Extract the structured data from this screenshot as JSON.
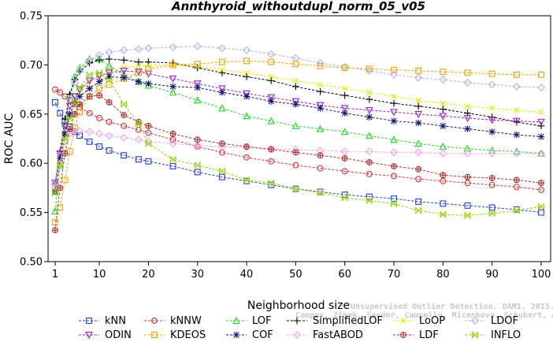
{
  "chart_data": {
    "type": "line",
    "title": "Annthyroid_withoutdupl_norm_05_v05",
    "xlabel": "Neighborhood size",
    "ylabel": "ROC AUC",
    "xlim": [
      1,
      100
    ],
    "ylim": [
      0.5,
      0.75
    ],
    "xticks": [
      1,
      10,
      20,
      30,
      40,
      50,
      60,
      70,
      80,
      90,
      100
    ],
    "yticks": [
      0.5,
      0.55,
      0.6,
      0.65,
      0.7,
      0.75
    ],
    "ytick_labels": [
      "0.50",
      "0.55",
      "0.60",
      "0.65",
      "0.70",
      "0.75"
    ],
    "grid": false,
    "legend_position": "bottom",
    "x": [
      1,
      2,
      3,
      4,
      5,
      6,
      8,
      10,
      12,
      15,
      18,
      20,
      25,
      30,
      35,
      40,
      45,
      50,
      55,
      60,
      65,
      70,
      75,
      80,
      85,
      90,
      95,
      100
    ],
    "series": [
      {
        "name": "kNN",
        "color": "#1f3fd6",
        "marker": "square",
        "values": [
          0.662,
          0.651,
          0.643,
          0.637,
          0.632,
          0.628,
          0.622,
          0.617,
          0.613,
          0.608,
          0.604,
          0.602,
          0.597,
          0.591,
          0.586,
          0.582,
          0.578,
          0.574,
          0.571,
          0.568,
          0.566,
          0.564,
          0.561,
          0.559,
          0.557,
          0.555,
          0.553,
          0.55
        ]
      },
      {
        "name": "kNNW",
        "color": "#e03030",
        "marker": "circle",
        "values": [
          0.675,
          0.672,
          0.668,
          0.664,
          0.66,
          0.657,
          0.651,
          0.646,
          0.642,
          0.638,
          0.634,
          0.631,
          0.624,
          0.617,
          0.611,
          0.606,
          0.602,
          0.598,
          0.595,
          0.592,
          0.589,
          0.587,
          0.584,
          0.582,
          0.58,
          0.578,
          0.576,
          0.573
        ]
      },
      {
        "name": "LOF",
        "color": "#22d622",
        "marker": "triangle-up",
        "values": [
          0.551,
          0.598,
          0.64,
          0.67,
          0.688,
          0.697,
          0.706,
          0.706,
          0.699,
          0.69,
          0.683,
          0.679,
          0.672,
          0.664,
          0.656,
          0.648,
          0.643,
          0.638,
          0.635,
          0.632,
          0.628,
          0.624,
          0.62,
          0.617,
          0.615,
          0.613,
          0.612,
          0.61
        ]
      },
      {
        "name": "SimplifiedLOF",
        "color": "#000000",
        "marker": "plus",
        "values": [
          0.579,
          0.612,
          0.645,
          0.67,
          0.685,
          0.693,
          0.702,
          0.705,
          0.706,
          0.705,
          0.703,
          0.703,
          0.702,
          0.697,
          0.692,
          0.688,
          0.684,
          0.678,
          0.673,
          0.669,
          0.665,
          0.661,
          0.658,
          0.655,
          0.651,
          0.647,
          0.642,
          0.638
        ]
      },
      {
        "name": "LoOP",
        "color": "#e6e600",
        "marker": "x",
        "values": [
          0.575,
          0.6,
          0.625,
          0.648,
          0.662,
          0.672,
          0.682,
          0.688,
          0.693,
          0.697,
          0.699,
          0.7,
          0.7,
          0.698,
          0.695,
          0.692,
          0.688,
          0.684,
          0.68,
          0.676,
          0.672,
          0.668,
          0.664,
          0.661,
          0.658,
          0.656,
          0.654,
          0.652
        ]
      },
      {
        "name": "LDOF",
        "color": "#b0b0e8",
        "marker": "diamond",
        "values": [
          0.578,
          0.61,
          0.64,
          0.665,
          0.682,
          0.694,
          0.705,
          0.71,
          0.713,
          0.715,
          0.716,
          0.717,
          0.718,
          0.719,
          0.717,
          0.715,
          0.711,
          0.707,
          0.702,
          0.698,
          0.694,
          0.69,
          0.687,
          0.685,
          0.682,
          0.68,
          0.678,
          0.677
        ]
      },
      {
        "name": "ODIN",
        "color": "#9a20d0",
        "marker": "triangle-down",
        "values": [
          0.58,
          0.61,
          0.638,
          0.658,
          0.668,
          0.675,
          0.684,
          0.689,
          0.692,
          0.694,
          0.693,
          0.691,
          0.686,
          0.681,
          0.676,
          0.671,
          0.667,
          0.663,
          0.659,
          0.656,
          0.654,
          0.652,
          0.65,
          0.648,
          0.646,
          0.644,
          0.643,
          0.642
        ]
      },
      {
        "name": "KDEOS",
        "color": "#f0a000",
        "marker": "square",
        "values": [
          0.54,
          0.555,
          0.583,
          0.612,
          0.636,
          0.652,
          0.668,
          0.676,
          0.68,
          0.686,
          0.692,
          0.696,
          0.7,
          0.701,
          0.703,
          0.704,
          0.703,
          0.701,
          0.699,
          0.697,
          0.696,
          0.695,
          0.694,
          0.693,
          0.692,
          0.691,
          0.69,
          0.69
        ]
      },
      {
        "name": "COF",
        "color": "#14147a",
        "marker": "asterisk",
        "values": [
          0.571,
          0.605,
          0.63,
          0.65,
          0.662,
          0.668,
          0.676,
          0.683,
          0.688,
          0.687,
          0.683,
          0.681,
          0.678,
          0.677,
          0.672,
          0.668,
          0.663,
          0.66,
          0.656,
          0.651,
          0.647,
          0.643,
          0.641,
          0.638,
          0.635,
          0.632,
          0.629,
          0.627
        ]
      },
      {
        "name": "FastABOD",
        "color": "#f0a0f0",
        "marker": "diamond",
        "values": [
          0.576,
          0.6,
          0.622,
          0.63,
          0.633,
          0.633,
          0.632,
          0.63,
          0.628,
          0.626,
          0.624,
          0.622,
          0.62,
          0.618,
          0.617,
          0.616,
          0.615,
          0.614,
          0.613,
          0.612,
          0.612,
          0.611,
          0.611,
          0.61,
          0.61,
          0.61,
          0.61,
          0.61
        ]
      },
      {
        "name": "LDF",
        "color": "#b03030",
        "marker": "circle-plus",
        "values": [
          0.532,
          0.575,
          0.61,
          0.635,
          0.65,
          0.66,
          0.668,
          0.669,
          0.662,
          0.649,
          0.642,
          0.638,
          0.63,
          0.624,
          0.62,
          0.617,
          0.614,
          0.611,
          0.608,
          0.605,
          0.601,
          0.597,
          0.594,
          0.588,
          0.586,
          0.585,
          0.583,
          0.58
        ]
      },
      {
        "name": "INFLO",
        "color": "#8fd400",
        "marker": "bowtie",
        "values": [
          0.57,
          0.598,
          0.625,
          0.645,
          0.662,
          0.677,
          0.69,
          0.692,
          0.685,
          0.66,
          0.64,
          0.62,
          0.604,
          0.598,
          0.592,
          0.583,
          0.58,
          0.574,
          0.57,
          0.565,
          0.562,
          0.559,
          0.552,
          0.548,
          0.547,
          0.549,
          0.552,
          0.556
        ]
      }
    ]
  },
  "watermark": {
    "line1": "Unsupervised Outlier Detection. DAMI, 2015.",
    "line2": "Campos, Zimek, Sander, Campello, Micenkova, Schubert, Assent, Houle"
  }
}
